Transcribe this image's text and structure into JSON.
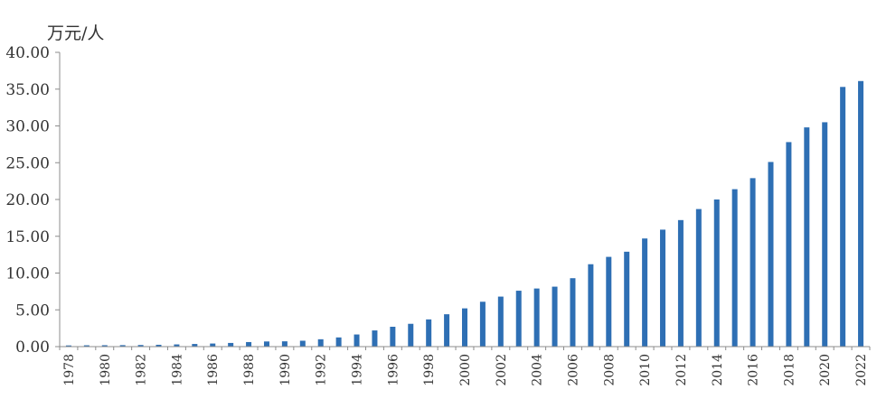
{
  "chart_data": {
    "type": "bar",
    "title": "",
    "ylabel": "万元/人",
    "xlabel": "",
    "ylim": [
      0,
      40
    ],
    "y_ticks": [
      "0.00",
      "5.00",
      "10.00",
      "15.00",
      "20.00",
      "25.00",
      "30.00",
      "35.00",
      "40.00"
    ],
    "y_tick_values": [
      0,
      5,
      10,
      15,
      20,
      25,
      30,
      35,
      40
    ],
    "categories": [
      "1978",
      "1979",
      "1980",
      "1981",
      "1982",
      "1983",
      "1984",
      "1985",
      "1986",
      "1987",
      "1988",
      "1989",
      "1990",
      "1991",
      "1992",
      "1993",
      "1994",
      "1995",
      "1996",
      "1997",
      "1998",
      "1999",
      "2000",
      "2001",
      "2002",
      "2003",
      "2004",
      "2005",
      "2006",
      "2007",
      "2008",
      "2009",
      "2010",
      "2011",
      "2012",
      "2013",
      "2014",
      "2015",
      "2016",
      "2017",
      "2018",
      "2019",
      "2020",
      "2021",
      "2022"
    ],
    "x_tick_labels": [
      "1978",
      "1980",
      "1982",
      "1984",
      "1986",
      "1988",
      "1990",
      "1992",
      "1994",
      "1996",
      "1998",
      "2000",
      "2002",
      "2004",
      "2006",
      "2008",
      "2010",
      "2012",
      "2014",
      "2016",
      "2018",
      "2020",
      "2022"
    ],
    "values": [
      0.16,
      0.18,
      0.19,
      0.2,
      0.22,
      0.25,
      0.3,
      0.36,
      0.42,
      0.5,
      0.62,
      0.7,
      0.72,
      0.8,
      1.0,
      1.25,
      1.65,
      2.2,
      2.7,
      3.1,
      3.7,
      4.4,
      5.2,
      6.1,
      6.8,
      7.6,
      7.9,
      8.15,
      9.3,
      11.2,
      12.2,
      12.9,
      14.7,
      15.9,
      17.2,
      18.7,
      20.0,
      21.4,
      22.9,
      25.1,
      27.8,
      29.8,
      30.5,
      35.3,
      36.1
    ],
    "bar_color": "#2e6fb4",
    "grid": false
  }
}
